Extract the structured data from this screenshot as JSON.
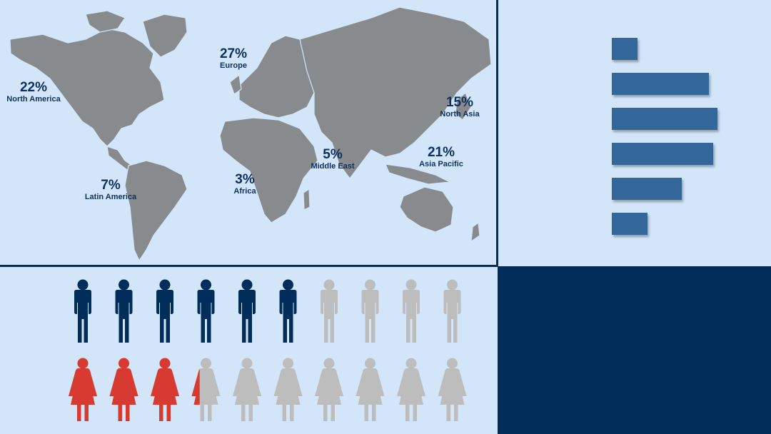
{
  "regions": [
    {
      "pct": "22%",
      "name": "North America"
    },
    {
      "pct": "27%",
      "name": "Europe"
    },
    {
      "pct": "15%",
      "name": "North Asia"
    },
    {
      "pct": "5%",
      "name": "Middle East"
    },
    {
      "pct": "21%",
      "name": "Asia Pacific"
    },
    {
      "pct": "3%",
      "name": "Africa"
    },
    {
      "pct": "7%",
      "name": "Latin America"
    }
  ],
  "bar_chart": {
    "values_relative": [
      0.24,
      0.92,
      1.0,
      0.96,
      0.66,
      0.34
    ],
    "color": "#336699"
  },
  "people": {
    "men": {
      "total": 10,
      "filled": 6.2,
      "color_filled": "#012d5a",
      "color_empty": "#bdbdbd"
    },
    "women": {
      "total": 10,
      "filled": 3.3,
      "color_filled": "#d63a31",
      "color_empty": "#bdbdbd"
    }
  },
  "colors": {
    "background": "#d3e6f9",
    "dark_panel": "#012d5a",
    "land": "#888b8e"
  }
}
